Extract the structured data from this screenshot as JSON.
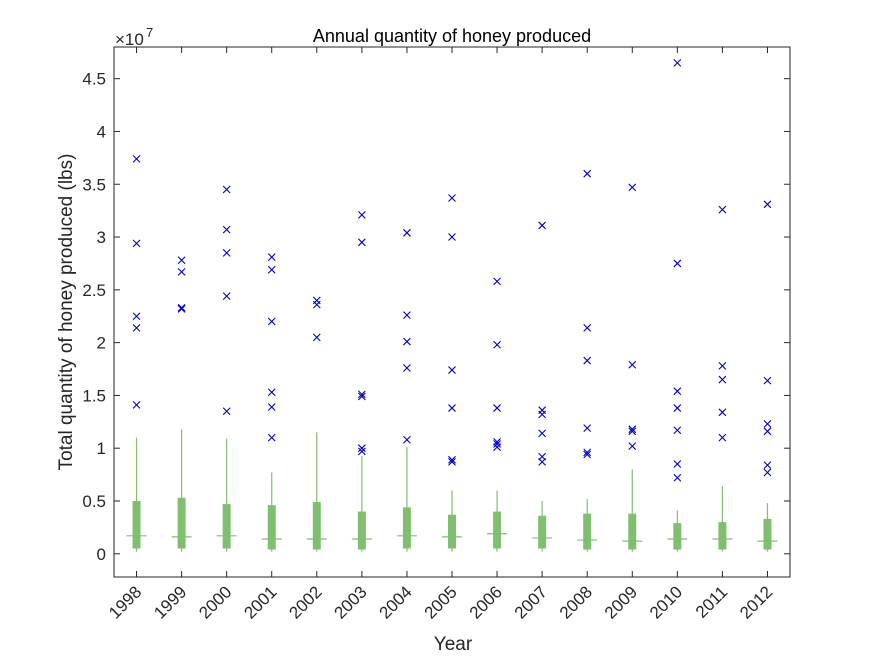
{
  "chart_data": {
    "type": "box",
    "title": "Annual quantity of honey produced",
    "xlabel": "Year",
    "ylabel": "Total quantity of honey produced (lbs)",
    "exponent_label": "×10",
    "exponent_power": "7",
    "y_scale": 10000000,
    "ylim": [
      -0.22,
      4.8
    ],
    "y_ticks": [
      0,
      0.5,
      1,
      1.5,
      2,
      2.5,
      3,
      3.5,
      4,
      4.5
    ],
    "y_tick_labels": [
      "0",
      "0.5",
      "1",
      "1.5",
      "2",
      "2.5",
      "3",
      "3.5",
      "4",
      "4.5"
    ],
    "categories": [
      "1998",
      "1999",
      "2000",
      "2001",
      "2002",
      "2003",
      "2004",
      "2005",
      "2006",
      "2007",
      "2008",
      "2009",
      "2010",
      "2011",
      "2012"
    ],
    "box_color": "#7fbf6f",
    "outlier_color": "#0000cc",
    "boxes": [
      {
        "q1": 0.05,
        "median": 0.17,
        "q3": 0.5,
        "whisker_low": 0.02,
        "whisker_high": 1.1,
        "outliers": [
          1.41,
          2.14,
          2.25,
          2.94,
          3.74
        ]
      },
      {
        "q1": 0.05,
        "median": 0.16,
        "q3": 0.53,
        "whisker_low": 0.02,
        "whisker_high": 1.18,
        "outliers": [
          2.32,
          2.33,
          2.67,
          2.78
        ]
      },
      {
        "q1": 0.05,
        "median": 0.17,
        "q3": 0.47,
        "whisker_low": 0.02,
        "whisker_high": 1.09,
        "outliers": [
          1.35,
          2.44,
          2.85,
          3.07,
          3.45
        ]
      },
      {
        "q1": 0.04,
        "median": 0.14,
        "q3": 0.46,
        "whisker_low": 0.02,
        "whisker_high": 0.77,
        "outliers": [
          1.1,
          1.39,
          1.53,
          2.2,
          2.69,
          2.81
        ]
      },
      {
        "q1": 0.04,
        "median": 0.14,
        "q3": 0.49,
        "whisker_low": 0.02,
        "whisker_high": 1.15,
        "outliers": [
          2.05,
          2.36,
          2.4
        ]
      },
      {
        "q1": 0.04,
        "median": 0.14,
        "q3": 0.4,
        "whisker_low": 0.02,
        "whisker_high": 0.93,
        "outliers": [
          0.97,
          1.0,
          1.49,
          1.51,
          2.95,
          3.21
        ]
      },
      {
        "q1": 0.05,
        "median": 0.17,
        "q3": 0.44,
        "whisker_low": 0.02,
        "whisker_high": 1.01,
        "outliers": [
          1.08,
          1.76,
          2.01,
          2.26,
          3.04
        ]
      },
      {
        "q1": 0.05,
        "median": 0.16,
        "q3": 0.37,
        "whisker_low": 0.02,
        "whisker_high": 0.6,
        "outliers": [
          0.87,
          0.89,
          1.38,
          1.74,
          3.0,
          3.37
        ]
      },
      {
        "q1": 0.05,
        "median": 0.19,
        "q3": 0.4,
        "whisker_low": 0.02,
        "whisker_high": 0.6,
        "outliers": [
          1.01,
          1.04,
          1.06,
          1.38,
          1.98,
          2.58
        ]
      },
      {
        "q1": 0.05,
        "median": 0.15,
        "q3": 0.36,
        "whisker_low": 0.02,
        "whisker_high": 0.5,
        "outliers": [
          0.87,
          0.92,
          1.14,
          1.32,
          1.36,
          3.11
        ]
      },
      {
        "q1": 0.04,
        "median": 0.13,
        "q3": 0.38,
        "whisker_low": 0.02,
        "whisker_high": 0.52,
        "outliers": [
          0.94,
          0.96,
          1.19,
          1.83,
          2.14,
          3.6
        ]
      },
      {
        "q1": 0.04,
        "median": 0.12,
        "q3": 0.38,
        "whisker_low": 0.02,
        "whisker_high": 0.8,
        "outliers": [
          1.02,
          1.16,
          1.18,
          1.79,
          3.47
        ]
      },
      {
        "q1": 0.04,
        "median": 0.14,
        "q3": 0.29,
        "whisker_low": 0.02,
        "whisker_high": 0.41,
        "outliers": [
          0.72,
          0.85,
          1.17,
          1.38,
          1.54,
          2.75,
          4.65
        ]
      },
      {
        "q1": 0.04,
        "median": 0.14,
        "q3": 0.3,
        "whisker_low": 0.02,
        "whisker_high": 0.64,
        "outliers": [
          1.1,
          1.34,
          1.65,
          1.78,
          3.26
        ]
      },
      {
        "q1": 0.04,
        "median": 0.12,
        "q3": 0.33,
        "whisker_low": 0.02,
        "whisker_high": 0.48,
        "outliers": [
          0.77,
          0.84,
          1.16,
          1.23,
          1.64,
          3.31
        ]
      }
    ],
    "grid": false,
    "legend": "none"
  }
}
